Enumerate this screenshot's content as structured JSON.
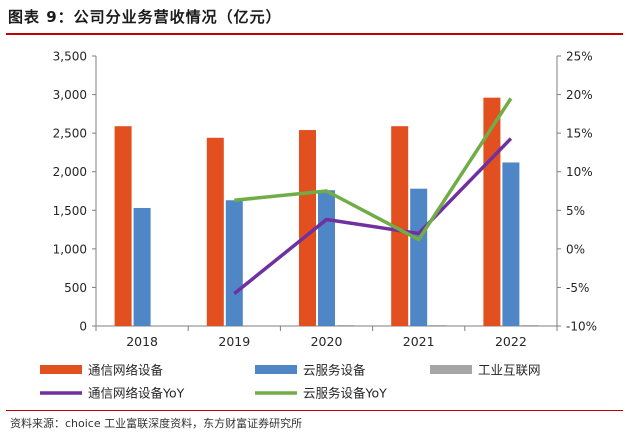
{
  "title": "图表 9：公司分业务营收情况（亿元）",
  "source": "资料来源：choice 工业富联深度资料，东方财富证券研究所",
  "chart_data": {
    "type": "bar",
    "categories": [
      "2018",
      "2019",
      "2020",
      "2021",
      "2022"
    ],
    "y_left": {
      "range": [
        0,
        3500
      ],
      "ticks": [
        0,
        500,
        1000,
        1500,
        2000,
        2500,
        3000,
        3500
      ],
      "tick_labels": [
        "0",
        "500",
        "1,000",
        "1,500",
        "2,000",
        "2,500",
        "3,000",
        "3,500"
      ]
    },
    "y_right": {
      "range": [
        -10,
        25
      ],
      "ticks": [
        -10,
        -5,
        0,
        5,
        10,
        15,
        20,
        25
      ],
      "tick_labels": [
        "-10%",
        "-5%",
        "0%",
        "5%",
        "10%",
        "15%",
        "20%",
        "25%"
      ]
    },
    "bar_series": [
      {
        "name": "通信网络设备",
        "color": "#e2501f",
        "values": [
          2590,
          2440,
          2540,
          2590,
          2960
        ]
      },
      {
        "name": "云服务设备",
        "color": "#4f86c6",
        "values": [
          1530,
          1630,
          1760,
          1780,
          2120
        ]
      },
      {
        "name": "工业互联网",
        "color": "#a6a6a6",
        "values": [
          0,
          0,
          5,
          10,
          13
        ]
      }
    ],
    "line_series": [
      {
        "name": "通信网络设备YoY",
        "color": "#7030a0",
        "values": [
          null,
          -5.8,
          3.8,
          2.0,
          14.3
        ]
      },
      {
        "name": "云服务设备YoY",
        "color": "#70ad47",
        "values": [
          null,
          6.3,
          7.5,
          1.2,
          19.5
        ]
      }
    ],
    "legend_position": "bottom",
    "grid": false
  }
}
